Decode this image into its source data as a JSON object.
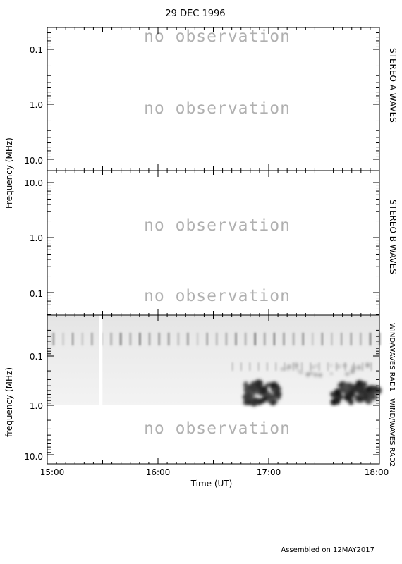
{
  "title": "29 DEC 1996",
  "footer": "Assembled on 12MAY2017",
  "ylabel_top": "Frequency (MHz)",
  "ylabel_bottom": "frequency (MHz)",
  "xlabel": "Time (UT)",
  "no_observation_text": "no observation",
  "chart_data": [
    {
      "type": "heatmap",
      "panel": "STEREO A WAVES",
      "ylabel": "Frequency (MHz)",
      "yscale": "log",
      "yticks": [
        "0.1",
        "1.0",
        "10.0"
      ],
      "y_reversed": false,
      "status": [
        "no observation",
        "no observation"
      ]
    },
    {
      "type": "heatmap",
      "panel": "STEREO B WAVES",
      "ylabel": "Frequency (MHz)",
      "yscale": "log",
      "yticks": [
        "10.0",
        "1.0",
        "0.1"
      ],
      "y_reversed": true,
      "status": [
        "no observation",
        "no observation"
      ]
    },
    {
      "type": "heatmap",
      "panel": "WIND/WAVES RAD1 / WIND/WAVES RAD2",
      "side_labels": [
        "WIND/WAVES RAD1",
        "WIND/WAVES RAD2"
      ],
      "ylabel": "frequency (MHz)",
      "yscale": "log",
      "yticks": [
        "0.1",
        "1.0",
        "10.0"
      ],
      "xlabel": "Time (UT)",
      "xticks": [
        "15:00",
        "16:00",
        "17:00",
        "18:00"
      ],
      "xlim": [
        "15:00",
        "18:00"
      ],
      "data_gap_time": "15:28",
      "rad2_status": "no observation",
      "bursts": [
        {
          "start": "16:47",
          "end": "17:06",
          "freq_range_mhz": [
            0.35,
            0.9
          ],
          "intensity": "strong"
        },
        {
          "start": "17:34",
          "end": "18:00",
          "freq_range_mhz": [
            0.35,
            0.9
          ],
          "intensity": "strong"
        },
        {
          "start": "17:05",
          "end": "17:55",
          "freq_range_mhz": [
            0.15,
            0.25
          ],
          "intensity": "weak"
        }
      ]
    }
  ]
}
